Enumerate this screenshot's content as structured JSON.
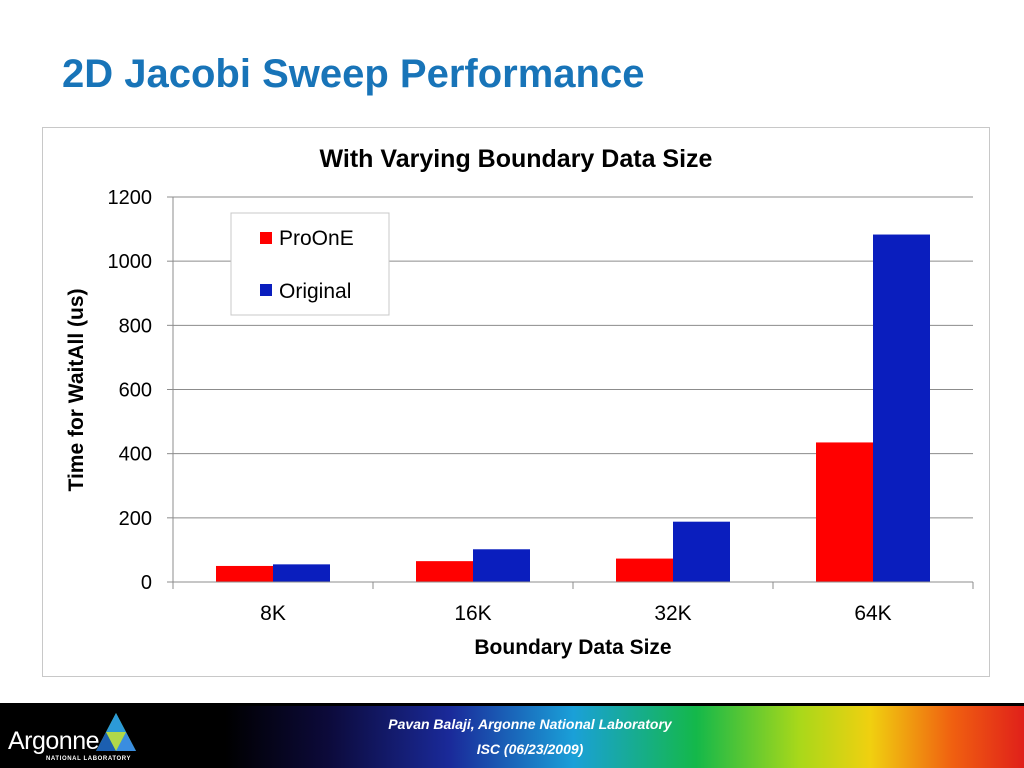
{
  "slide": {
    "title": "2D Jacobi Sweep Performance"
  },
  "footer": {
    "author_line": "Pavan Balaji, Argonne National Laboratory",
    "event_line": "ISC (06/23/2009)",
    "logo_word": "Argonne",
    "logo_sub": "NATIONAL LABORATORY"
  },
  "chart_data": {
    "type": "bar",
    "title": "With Varying Boundary Data Size",
    "xlabel": "Boundary Data Size",
    "ylabel": "Time for WaitAll (us)",
    "categories": [
      "8K",
      "16K",
      "32K",
      "64K"
    ],
    "series": [
      {
        "name": "ProOnE",
        "color": "#ff0000",
        "values": [
          50,
          65,
          73,
          435
        ]
      },
      {
        "name": "Original",
        "color": "#0a1ebe",
        "values": [
          55,
          102,
          188,
          1083
        ]
      }
    ],
    "ylim": [
      0,
      1200
    ],
    "yticks": [
      0,
      200,
      400,
      600,
      800,
      1000,
      1200
    ],
    "grid": true,
    "legend_position": "top-left"
  }
}
